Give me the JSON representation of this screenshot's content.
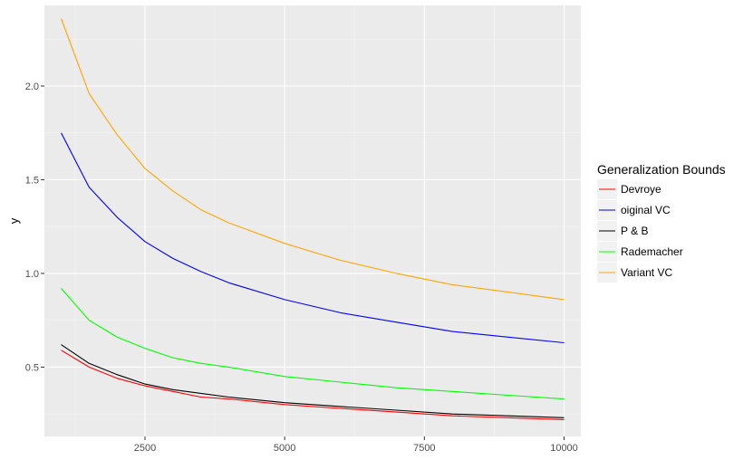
{
  "chart_data": {
    "type": "line",
    "title": "",
    "xlabel": "",
    "ylabel": "y",
    "xlim": [
      700,
      10300
    ],
    "ylim": [
      0.13,
      2.43
    ],
    "x_ticks": [
      2500,
      5000,
      7500,
      10000
    ],
    "x_tick_labels": [
      "2500",
      "5000",
      "7500",
      "10000"
    ],
    "y_ticks": [
      0.5,
      1.0,
      1.5,
      2.0
    ],
    "y_tick_labels": [
      "0.5",
      "1.0",
      "1.5",
      "2.0"
    ],
    "x_minor_ticks": [
      1250,
      3750,
      6250,
      8750
    ],
    "y_minor_ticks": [
      0.25,
      0.75,
      1.25,
      1.75,
      2.25
    ],
    "grid": true,
    "panel_background": "#EBEBEB",
    "legend": {
      "title": "Generalization Bounds",
      "placement": "right"
    },
    "x": [
      1000,
      1500,
      2000,
      2500,
      3000,
      3500,
      4000,
      5000,
      6000,
      7000,
      8000,
      9000,
      10000
    ],
    "series": [
      {
        "name": "Devroye",
        "color": "#FF0000",
        "values": [
          0.59,
          0.5,
          0.44,
          0.4,
          0.37,
          0.34,
          0.33,
          0.3,
          0.28,
          0.26,
          0.24,
          0.23,
          0.22
        ]
      },
      {
        "name": "oiginal VC",
        "color": "#0000FF",
        "values": [
          1.75,
          1.46,
          1.3,
          1.17,
          1.08,
          1.01,
          0.95,
          0.86,
          0.79,
          0.74,
          0.69,
          0.66,
          0.63
        ]
      },
      {
        "name": "P & B",
        "color": "#000000",
        "values": [
          0.62,
          0.52,
          0.46,
          0.41,
          0.38,
          0.36,
          0.34,
          0.31,
          0.29,
          0.27,
          0.25,
          0.24,
          0.23
        ]
      },
      {
        "name": "Rademacher",
        "color": "#00FF00",
        "values": [
          0.92,
          0.75,
          0.66,
          0.6,
          0.55,
          0.52,
          0.5,
          0.45,
          0.42,
          0.39,
          0.37,
          0.35,
          0.33
        ]
      },
      {
        "name": "Variant VC",
        "color": "#FFA500",
        "values": [
          2.36,
          1.96,
          1.74,
          1.56,
          1.44,
          1.34,
          1.27,
          1.16,
          1.07,
          1.0,
          0.94,
          0.9,
          0.86
        ]
      }
    ]
  }
}
